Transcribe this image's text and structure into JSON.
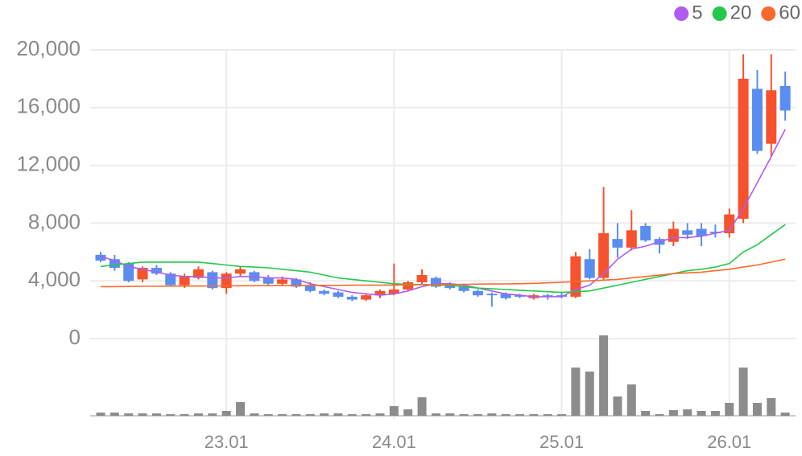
{
  "chart_data": {
    "type": "candlestick",
    "categories": [
      null,
      null,
      null,
      null,
      null,
      null,
      null,
      null,
      null,
      "23.01",
      null,
      null,
      null,
      null,
      null,
      null,
      null,
      null,
      null,
      null,
      null,
      "24.01",
      null,
      null,
      null,
      null,
      null,
      null,
      null,
      null,
      null,
      null,
      null,
      "25.01",
      null,
      null,
      null,
      null,
      null,
      null,
      null,
      null,
      null,
      null,
      null,
      "26.01",
      null,
      null,
      null,
      null
    ],
    "open": [
      5800,
      5500,
      5200,
      4100,
      4900,
      4500,
      3700,
      4200,
      4600,
      3500,
      4500,
      4600,
      4200,
      3800,
      4100,
      3700,
      3300,
      3200,
      2900,
      2700,
      3000,
      3100,
      3400,
      3900,
      4200,
      3800,
      3600,
      3300,
      3100,
      3100,
      3000,
      2800,
      3000,
      3000,
      2900,
      5500,
      4200,
      6900,
      6300,
      7800,
      6900,
      6700,
      7500,
      7600,
      7400,
      7300,
      8300,
      17300,
      13500,
      17500
    ],
    "high": [
      6000,
      5800,
      5300,
      5000,
      5100,
      4600,
      4500,
      5000,
      4700,
      4600,
      5000,
      4700,
      4400,
      4300,
      4200,
      3900,
      3400,
      3300,
      3000,
      3100,
      3400,
      5200,
      4000,
      4800,
      4300,
      3900,
      3800,
      3400,
      3200,
      3200,
      3100,
      3100,
      3100,
      3200,
      6000,
      6200,
      10500,
      8000,
      8900,
      8000,
      7000,
      8100,
      8000,
      8000,
      7900,
      9000,
      19700,
      18600,
      19700,
      18500
    ],
    "low": [
      5300,
      4700,
      3900,
      3900,
      4400,
      3600,
      3500,
      4100,
      3400,
      3100,
      4300,
      3900,
      3700,
      3700,
      3500,
      3200,
      3000,
      2800,
      2600,
      2600,
      2800,
      3000,
      3300,
      3700,
      3500,
      3400,
      3200,
      2900,
      2200,
      2700,
      2800,
      2700,
      2700,
      2800,
      2800,
      4100,
      4100,
      5600,
      6100,
      6700,
      5900,
      6400,
      6900,
      6400,
      7000,
      7000,
      8000,
      12800,
      12600,
      15100
    ],
    "close": [
      5400,
      4900,
      4000,
      4900,
      4500,
      3700,
      4300,
      4800,
      3500,
      4500,
      4800,
      4000,
      3800,
      4100,
      3600,
      3300,
      3100,
      2900,
      2700,
      3000,
      3300,
      3400,
      3900,
      4400,
      3600,
      3500,
      3300,
      3000,
      3000,
      2800,
      2900,
      3000,
      2900,
      2900,
      5700,
      4200,
      7300,
      6300,
      7500,
      6800,
      6500,
      7600,
      7200,
      7100,
      7300,
      8600,
      18000,
      13000,
      17200,
      15800
    ],
    "volume": [
      4,
      4,
      3,
      3,
      3,
      2,
      2,
      3,
      3,
      6,
      17,
      3,
      2,
      2,
      2,
      2,
      3,
      3,
      2,
      2,
      3,
      12,
      8,
      23,
      3,
      3,
      2,
      2,
      3,
      2,
      2,
      2,
      2,
      2,
      60,
      55,
      100,
      24,
      39,
      6,
      2,
      7,
      8,
      6,
      6,
      16,
      60,
      16,
      22,
      4
    ],
    "vlim": [
      0,
      100
    ],
    "up_color": "#f5522d",
    "down_color": "#5a8df0",
    "volume_color": "#8c8c8c",
    "series": [
      {
        "name": "5",
        "color": "#b05cf0",
        "values": [
          5700,
          5400,
          5000,
          4800,
          4600,
          4400,
          4300,
          4300,
          4200,
          4200,
          4300,
          4300,
          4200,
          4200,
          4100,
          3800,
          3600,
          3400,
          3200,
          3100,
          3000,
          3100,
          3300,
          3600,
          3800,
          3800,
          3700,
          3500,
          3300,
          3100,
          3000,
          2900,
          2900,
          2900,
          3400,
          3700,
          4500,
          5500,
          6200,
          6400,
          6700,
          7000,
          7000,
          7100,
          7300,
          7500,
          9000,
          10800,
          12600,
          14500
        ]
      },
      {
        "name": "20",
        "color": "#22c94a",
        "values": [
          5000,
          5100,
          5200,
          5300,
          5300,
          5300,
          5300,
          5300,
          5200,
          5100,
          5000,
          4950,
          4900,
          4800,
          4700,
          4600,
          4400,
          4200,
          4100,
          4000,
          3900,
          3800,
          3750,
          3750,
          3700,
          3700,
          3600,
          3500,
          3450,
          3400,
          3350,
          3300,
          3250,
          3200,
          3250,
          3300,
          3500,
          3700,
          3900,
          4100,
          4300,
          4500,
          4700,
          4800,
          4950,
          5200,
          6000,
          6500,
          7200,
          7900
        ]
      },
      {
        "name": "60",
        "color": "#fb6a2c",
        "values": [
          3600,
          3600,
          3610,
          3620,
          3620,
          3630,
          3640,
          3640,
          3650,
          3650,
          3660,
          3660,
          3670,
          3670,
          3680,
          3680,
          3690,
          3690,
          3700,
          3700,
          3700,
          3710,
          3720,
          3730,
          3740,
          3750,
          3760,
          3770,
          3780,
          3790,
          3800,
          3830,
          3860,
          3900,
          3950,
          4000,
          4050,
          4100,
          4200,
          4300,
          4400,
          4500,
          4550,
          4600,
          4700,
          4800,
          4950,
          5100,
          5300,
          5500
        ]
      }
    ],
    "ylim": [
      0,
      20000
    ],
    "yticks": [
      0,
      {
        "value": 4000,
        "label": "4,000"
      },
      {
        "value": 8000,
        "label": "8,000"
      },
      {
        "value": 12000,
        "label": "12,000"
      },
      {
        "value": 16000,
        "label": "16,000"
      },
      {
        "value": 20000,
        "label": "20,000"
      }
    ],
    "grid": true,
    "legend": "top-right"
  }
}
